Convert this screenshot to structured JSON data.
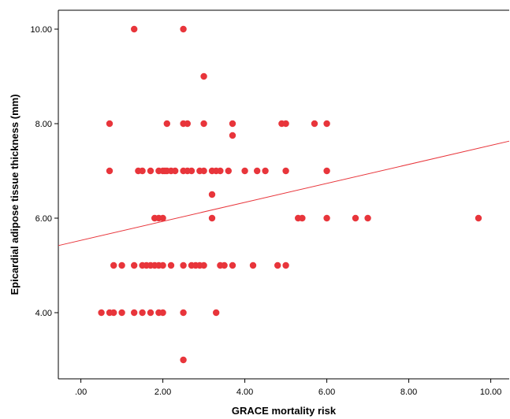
{
  "chart_data": {
    "type": "scatter",
    "xlabel": "GRACE mortality risk",
    "ylabel": "Epicardial adipose tissue thickness (mm)",
    "xlim": [
      -0.55,
      10.45
    ],
    "ylim": [
      2.6,
      10.4
    ],
    "x_ticks": [
      {
        "value": 0,
        "label": ".00"
      },
      {
        "value": 2,
        "label": "2.00"
      },
      {
        "value": 4,
        "label": "4.00"
      },
      {
        "value": 6,
        "label": "6.00"
      },
      {
        "value": 8,
        "label": "8.00"
      },
      {
        "value": 10,
        "label": "10.00"
      }
    ],
    "y_ticks": [
      {
        "value": 4,
        "label": "4.00"
      },
      {
        "value": 6,
        "label": "6.00"
      },
      {
        "value": 8,
        "label": "8.00"
      },
      {
        "value": 10,
        "label": "10.00"
      }
    ],
    "grid": false,
    "marker_color": "#e8353b",
    "fit_line_color": "#e8353b",
    "fit_line": {
      "x_start": -0.55,
      "y_start": 5.42,
      "x_end": 10.45,
      "y_end": 7.63
    },
    "points": [
      {
        "x": 1.3,
        "y": 10.0
      },
      {
        "x": 2.5,
        "y": 10.0
      },
      {
        "x": 3.0,
        "y": 9.0
      },
      {
        "x": 0.7,
        "y": 8.0
      },
      {
        "x": 2.1,
        "y": 8.0
      },
      {
        "x": 2.5,
        "y": 8.0
      },
      {
        "x": 2.6,
        "y": 8.0
      },
      {
        "x": 3.0,
        "y": 8.0
      },
      {
        "x": 3.7,
        "y": 8.0
      },
      {
        "x": 4.9,
        "y": 8.0
      },
      {
        "x": 5.0,
        "y": 8.0
      },
      {
        "x": 5.7,
        "y": 8.0
      },
      {
        "x": 6.0,
        "y": 8.0
      },
      {
        "x": 3.7,
        "y": 7.75
      },
      {
        "x": 0.7,
        "y": 7.0
      },
      {
        "x": 1.4,
        "y": 7.0
      },
      {
        "x": 1.5,
        "y": 7.0
      },
      {
        "x": 1.7,
        "y": 7.0
      },
      {
        "x": 1.9,
        "y": 7.0
      },
      {
        "x": 2.0,
        "y": 7.0
      },
      {
        "x": 2.05,
        "y": 7.0
      },
      {
        "x": 2.1,
        "y": 7.0
      },
      {
        "x": 2.2,
        "y": 7.0
      },
      {
        "x": 2.3,
        "y": 7.0
      },
      {
        "x": 2.5,
        "y": 7.0
      },
      {
        "x": 2.6,
        "y": 7.0
      },
      {
        "x": 2.7,
        "y": 7.0
      },
      {
        "x": 2.9,
        "y": 7.0
      },
      {
        "x": 3.0,
        "y": 7.0
      },
      {
        "x": 3.2,
        "y": 7.0
      },
      {
        "x": 3.3,
        "y": 7.0
      },
      {
        "x": 3.4,
        "y": 7.0
      },
      {
        "x": 3.6,
        "y": 7.0
      },
      {
        "x": 4.0,
        "y": 7.0
      },
      {
        "x": 4.3,
        "y": 7.0
      },
      {
        "x": 4.5,
        "y": 7.0
      },
      {
        "x": 5.0,
        "y": 7.0
      },
      {
        "x": 6.0,
        "y": 7.0
      },
      {
        "x": 3.2,
        "y": 6.5
      },
      {
        "x": 1.8,
        "y": 6.0
      },
      {
        "x": 1.9,
        "y": 6.0
      },
      {
        "x": 2.0,
        "y": 6.0
      },
      {
        "x": 3.2,
        "y": 6.0
      },
      {
        "x": 5.3,
        "y": 6.0
      },
      {
        "x": 5.4,
        "y": 6.0
      },
      {
        "x": 6.0,
        "y": 6.0
      },
      {
        "x": 6.7,
        "y": 6.0
      },
      {
        "x": 7.0,
        "y": 6.0
      },
      {
        "x": 9.7,
        "y": 6.0
      },
      {
        "x": 0.8,
        "y": 5.0
      },
      {
        "x": 1.0,
        "y": 5.0
      },
      {
        "x": 1.3,
        "y": 5.0
      },
      {
        "x": 1.5,
        "y": 5.0
      },
      {
        "x": 1.6,
        "y": 5.0
      },
      {
        "x": 1.7,
        "y": 5.0
      },
      {
        "x": 1.8,
        "y": 5.0
      },
      {
        "x": 1.9,
        "y": 5.0
      },
      {
        "x": 2.0,
        "y": 5.0
      },
      {
        "x": 2.2,
        "y": 5.0
      },
      {
        "x": 2.5,
        "y": 5.0
      },
      {
        "x": 2.7,
        "y": 5.0
      },
      {
        "x": 2.8,
        "y": 5.0
      },
      {
        "x": 2.9,
        "y": 5.0
      },
      {
        "x": 3.0,
        "y": 5.0
      },
      {
        "x": 3.4,
        "y": 5.0
      },
      {
        "x": 3.5,
        "y": 5.0
      },
      {
        "x": 3.7,
        "y": 5.0
      },
      {
        "x": 4.2,
        "y": 5.0
      },
      {
        "x": 4.8,
        "y": 5.0
      },
      {
        "x": 5.0,
        "y": 5.0
      },
      {
        "x": 0.5,
        "y": 4.0
      },
      {
        "x": 0.7,
        "y": 4.0
      },
      {
        "x": 0.8,
        "y": 4.0
      },
      {
        "x": 1.0,
        "y": 4.0
      },
      {
        "x": 1.3,
        "y": 4.0
      },
      {
        "x": 1.5,
        "y": 4.0
      },
      {
        "x": 1.7,
        "y": 4.0
      },
      {
        "x": 1.9,
        "y": 4.0
      },
      {
        "x": 2.0,
        "y": 4.0
      },
      {
        "x": 2.5,
        "y": 4.0
      },
      {
        "x": 3.3,
        "y": 4.0
      },
      {
        "x": 2.5,
        "y": 3.0
      }
    ]
  }
}
